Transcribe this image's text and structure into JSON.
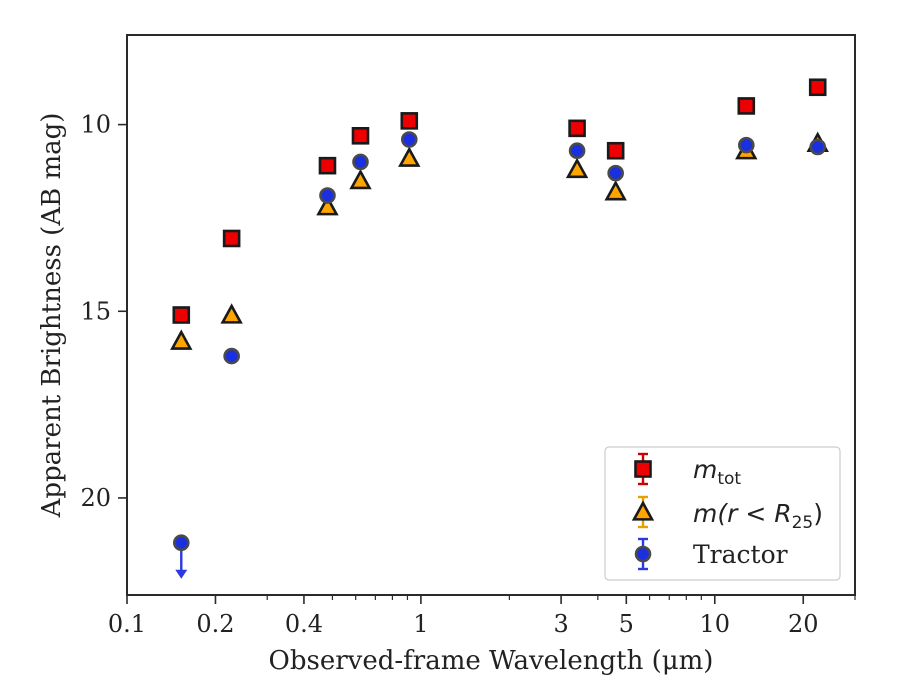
{
  "chart_data": {
    "type": "scatter",
    "xlabel": "Observed-frame Wavelength (μm)",
    "ylabel": "Apparent Brightness (AB mag)",
    "x_scale": "log",
    "xlim": [
      0.1,
      30
    ],
    "ylim": [
      22.6,
      7.6
    ],
    "y_inverted": true,
    "grid": false,
    "legend_position": "lower right",
    "x_ticks": [
      {
        "value": 0.1,
        "label": "0.1"
      },
      {
        "value": 0.2,
        "label": "0.2"
      },
      {
        "value": 0.4,
        "label": "0.4"
      },
      {
        "value": 1,
        "label": "1"
      },
      {
        "value": 3,
        "label": "3"
      },
      {
        "value": 5,
        "label": "5"
      },
      {
        "value": 10,
        "label": "10"
      },
      {
        "value": 20,
        "label": "20"
      }
    ],
    "y_ticks": [
      {
        "value": 10,
        "label": "10"
      },
      {
        "value": 15,
        "label": "15"
      },
      {
        "value": 20,
        "label": "20"
      }
    ],
    "series": [
      {
        "name": "m_tot",
        "legend_main": "m",
        "legend_sub": "tot",
        "marker": "square",
        "fill_color": "#ee0000",
        "edge_color": "#1a1a1a",
        "error_color": "#cc0000",
        "points": [
          {
            "x": 0.153,
            "y": 15.1
          },
          {
            "x": 0.227,
            "y": 13.05
          },
          {
            "x": 0.481,
            "y": 11.1
          },
          {
            "x": 0.623,
            "y": 10.3
          },
          {
            "x": 0.913,
            "y": 9.9
          },
          {
            "x": 3.4,
            "y": 10.1
          },
          {
            "x": 4.6,
            "y": 10.7
          },
          {
            "x": 12.8,
            "y": 9.5
          },
          {
            "x": 22.4,
            "y": 9.0
          }
        ]
      },
      {
        "name": "m(r < R_25)",
        "legend_main": "m(r < R",
        "legend_sub": "25",
        "legend_tail": ")",
        "marker": "triangle",
        "fill_color": "#ffa500",
        "edge_color": "#1a1a1a",
        "error_color": "#e6a000",
        "points": [
          {
            "x": 0.153,
            "y": 15.8
          },
          {
            "x": 0.227,
            "y": 15.1
          },
          {
            "x": 0.481,
            "y": 12.2
          },
          {
            "x": 0.623,
            "y": 11.5
          },
          {
            "x": 0.913,
            "y": 10.9
          },
          {
            "x": 3.4,
            "y": 11.2
          },
          {
            "x": 4.6,
            "y": 11.8
          },
          {
            "x": 12.8,
            "y": 10.7
          },
          {
            "x": 22.4,
            "y": 10.5
          }
        ]
      },
      {
        "name": "Tractor",
        "legend_main": "Tractor",
        "marker": "circle",
        "fill_color": "#1a2fe0",
        "edge_color": "#4a4a4a",
        "error_color": "#2a3ae0",
        "points": [
          {
            "x": 0.153,
            "y": 21.2,
            "upper_limit": true
          },
          {
            "x": 0.227,
            "y": 16.2
          },
          {
            "x": 0.481,
            "y": 11.9
          },
          {
            "x": 0.623,
            "y": 11.0
          },
          {
            "x": 0.913,
            "y": 10.4
          },
          {
            "x": 3.4,
            "y": 10.7
          },
          {
            "x": 4.6,
            "y": 11.3
          },
          {
            "x": 12.8,
            "y": 10.55
          },
          {
            "x": 22.4,
            "y": 10.6
          }
        ]
      }
    ]
  }
}
